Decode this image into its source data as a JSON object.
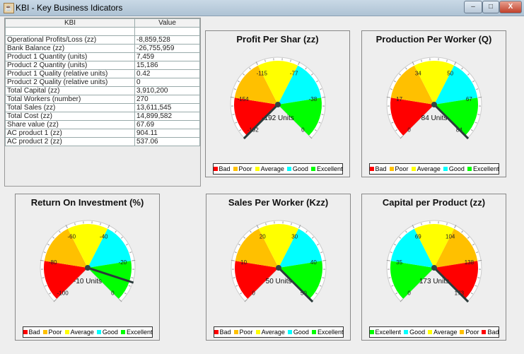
{
  "window": {
    "title": "KBI - Key Business Idicators",
    "controls": {
      "minimize": "–",
      "maximize": "□",
      "close": "X"
    }
  },
  "table": {
    "headers": [
      "KBI",
      "Value"
    ],
    "rows": [
      [
        "",
        ""
      ],
      [
        "Operational Profits/Loss (zz)",
        "-8,859,528"
      ],
      [
        "Bank Balance (zz)",
        "-26,755,959"
      ],
      [
        "Product 1 Quantity (units)",
        "7,459"
      ],
      [
        "Product 2 Quantity (units)",
        "15,186"
      ],
      [
        "Product 1 Quality (relative units)",
        "0.42"
      ],
      [
        "Product 2 Quality (relative units)",
        "0"
      ],
      [
        "Total Capital (zz)",
        "3,910,200"
      ],
      [
        "Total Workers (number)",
        "270"
      ],
      [
        "Total Sales (zz)",
        "13,611,545"
      ],
      [
        "Total Cost (zz)",
        "14,899,582"
      ],
      [
        "Share value (zz)",
        "67.69"
      ],
      [
        "AC product 1 (zz)",
        "904.11"
      ],
      [
        "AC product 2 (zz)",
        "537.06"
      ]
    ]
  },
  "colors": {
    "Bad": "#ff0000",
    "Poor": "#ffc000",
    "Average": "#ffff00",
    "Good": "#00ffff",
    "Excellent": "#00ff00"
  },
  "gauges": [
    {
      "title": "Profit Per Shar (zz)",
      "min": -192,
      "max": 0,
      "value": -192,
      "value_label": "-192 Units",
      "tick_labels": [
        "-192",
        "-154",
        "-115",
        "-77",
        "-38",
        "0"
      ],
      "segments": [
        "Bad",
        "Poor",
        "Average",
        "Good",
        "Excellent"
      ]
    },
    {
      "title": "Production Per Worker (Q)",
      "min": 0,
      "max": 84,
      "value": 84,
      "value_label": "84 Units",
      "tick_labels": [
        "0",
        "17",
        "34",
        "50",
        "67",
        "84"
      ],
      "segments": [
        "Bad",
        "Poor",
        "Average",
        "Good",
        "Excellent"
      ]
    },
    {
      "title": "Return On Investment (%)",
      "min": -100,
      "max": 0,
      "value": -10,
      "value_label": "-10 Units",
      "tick_labels": [
        "-100",
        "-80",
        "-60",
        "-40",
        "-20",
        "0"
      ],
      "segments": [
        "Bad",
        "Poor",
        "Average",
        "Good",
        "Excellent"
      ]
    },
    {
      "title": "Sales Per Worker (Kzz)",
      "min": 0,
      "max": 50,
      "value": 50,
      "value_label": "50 Units",
      "tick_labels": [
        "0",
        "10",
        "20",
        "30",
        "40",
        "50"
      ],
      "segments": [
        "Bad",
        "Poor",
        "Average",
        "Good",
        "Excellent"
      ]
    },
    {
      "title": "Capital per Product (zz)",
      "min": 0,
      "max": 173,
      "value": 173,
      "value_label": "173 Units",
      "tick_labels": [
        "0",
        "35",
        "69",
        "104",
        "138",
        "173"
      ],
      "segments": [
        "Excellent",
        "Good",
        "Average",
        "Poor",
        "Bad"
      ]
    }
  ]
}
